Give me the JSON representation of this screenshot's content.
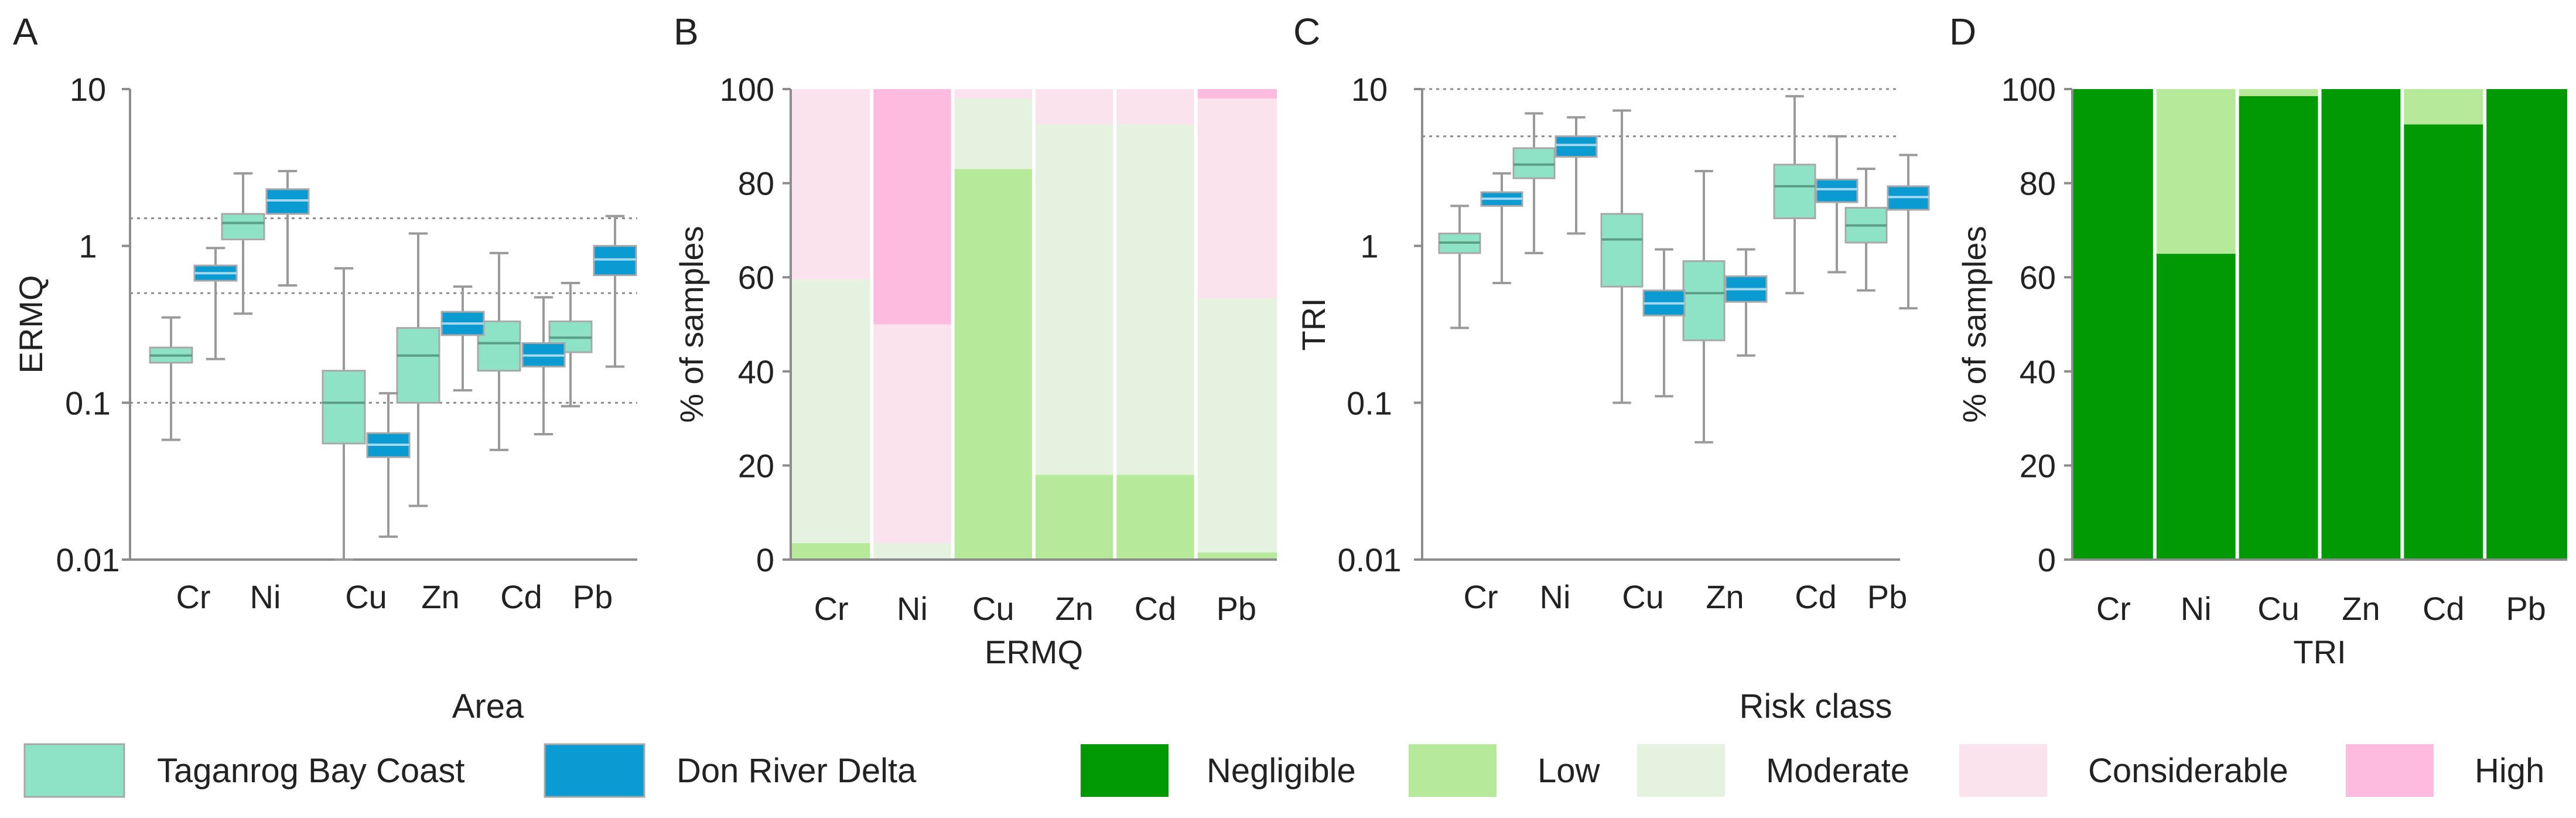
{
  "figure": {
    "panels": {
      "a": "A",
      "b": "B",
      "c": "C",
      "d": "D"
    },
    "legend_area": {
      "title": "Area",
      "items": [
        {
          "label": "Taganrog Bay Coast",
          "color": "#8ee3c6"
        },
        {
          "label": "Don River Delta",
          "color": "#0b9bd3"
        }
      ]
    },
    "legend_risk": {
      "title": "Risk class",
      "items": [
        {
          "label": "Negligible",
          "color": "#019a04"
        },
        {
          "label": "Low",
          "color": "#b7e99b"
        },
        {
          "label": "Moderate",
          "color": "#e5f2e0"
        },
        {
          "label": "Considerable",
          "color": "#fbe3ee"
        },
        {
          "label": "High",
          "color": "#fcbbdf"
        }
      ]
    }
  },
  "chart_data": [
    {
      "id": "A",
      "type": "box",
      "scale": "log",
      "ylabel": "ERMQ",
      "xlabel": "",
      "ylim": [
        0.01,
        10
      ],
      "yticks": [
        {
          "value": 0.01,
          "label": "0.01"
        },
        {
          "value": 0.1,
          "label": "0.1"
        },
        {
          "value": 1,
          "label": "1"
        },
        {
          "value": 10,
          "label": "10"
        }
      ],
      "ref_lines": [
        0.1,
        0.5,
        1.5
      ],
      "categories": [
        "Cr",
        "Ni",
        "Cu",
        "Zn",
        "Cd",
        "Pb"
      ],
      "series": [
        {
          "name": "Taganrog Bay Coast",
          "boxes": [
            {
              "min": 0.058,
              "q1": 0.18,
              "median": 0.2,
              "q3": 0.225,
              "max": 0.35
            },
            {
              "min": 0.37,
              "q1": 1.1,
              "median": 1.4,
              "q3": 1.6,
              "max": 2.9
            },
            {
              "min": 0.01,
              "q1": 0.055,
              "median": 0.1,
              "q3": 0.16,
              "max": 0.72
            },
            {
              "min": 0.022,
              "q1": 0.1,
              "median": 0.2,
              "q3": 0.3,
              "max": 1.2
            },
            {
              "min": 0.05,
              "q1": 0.16,
              "median": 0.24,
              "q3": 0.33,
              "max": 0.9
            },
            {
              "min": 0.095,
              "q1": 0.21,
              "median": 0.26,
              "q3": 0.33,
              "max": 0.58
            }
          ]
        },
        {
          "name": "Don River Delta",
          "boxes": [
            {
              "min": 0.19,
              "q1": 0.6,
              "median": 0.67,
              "q3": 0.75,
              "max": 0.97
            },
            {
              "min": 0.56,
              "q1": 1.6,
              "median": 1.95,
              "q3": 2.3,
              "max": 3.0
            },
            {
              "min": 0.014,
              "q1": 0.045,
              "median": 0.054,
              "q3": 0.064,
              "max": 0.115
            },
            {
              "min": 0.12,
              "q1": 0.27,
              "median": 0.32,
              "q3": 0.38,
              "max": 0.55
            },
            {
              "min": 0.063,
              "q1": 0.17,
              "median": 0.2,
              "q3": 0.24,
              "max": 0.47
            },
            {
              "min": 0.17,
              "q1": 0.65,
              "median": 0.82,
              "q3": 1.0,
              "max": 1.55
            }
          ]
        }
      ]
    },
    {
      "id": "B",
      "type": "stacked-bar",
      "ylabel": "% of samples",
      "xlabel": "ERMQ",
      "ylim": [
        0,
        100
      ],
      "yticks": [
        0,
        20,
        40,
        60,
        80,
        100
      ],
      "categories": [
        "Cr",
        "Ni",
        "Cu",
        "Zn",
        "Cd",
        "Pb"
      ],
      "series": [
        {
          "name": "Negligible",
          "color": "#019a04",
          "values": [
            0,
            0,
            0,
            0,
            0,
            0
          ]
        },
        {
          "name": "Low",
          "color": "#b7e99b",
          "values": [
            3.5,
            0,
            83,
            18,
            18,
            1.5
          ]
        },
        {
          "name": "Moderate",
          "color": "#e5f2e0",
          "values": [
            56,
            3.5,
            15,
            74.5,
            74.5,
            54
          ]
        },
        {
          "name": "Considerable",
          "color": "#fbe3ee",
          "values": [
            40.5,
            46.5,
            2,
            7.5,
            7.5,
            42.5
          ]
        },
        {
          "name": "High",
          "color": "#fcbbdf",
          "values": [
            0,
            50,
            0,
            0,
            0,
            2
          ]
        }
      ]
    },
    {
      "id": "C",
      "type": "box",
      "scale": "log",
      "ylabel": "TRI",
      "xlabel": "",
      "ylim": [
        0.01,
        10
      ],
      "yticks": [
        {
          "value": 0.01,
          "label": "0.01"
        },
        {
          "value": 0.1,
          "label": "0.1"
        },
        {
          "value": 1,
          "label": "1"
        },
        {
          "value": 10,
          "label": "10"
        }
      ],
      "ref_lines": [
        5,
        10
      ],
      "categories": [
        "Cr",
        "Ni",
        "Cu",
        "Zn",
        "Cd",
        "Pb"
      ],
      "series": [
        {
          "name": "Taganrog Bay Coast",
          "boxes": [
            {
              "min": 0.3,
              "q1": 0.9,
              "median": 1.05,
              "q3": 1.2,
              "max": 1.8
            },
            {
              "min": 0.9,
              "q1": 2.7,
              "median": 3.3,
              "q3": 4.2,
              "max": 7.0
            },
            {
              "min": 0.1,
              "q1": 0.55,
              "median": 1.1,
              "q3": 1.6,
              "max": 7.3
            },
            {
              "min": 0.056,
              "q1": 0.25,
              "median": 0.5,
              "q3": 0.8,
              "max": 3.0
            },
            {
              "min": 0.5,
              "q1": 1.5,
              "median": 2.4,
              "q3": 3.3,
              "max": 9.0
            },
            {
              "min": 0.52,
              "q1": 1.05,
              "median": 1.35,
              "q3": 1.75,
              "max": 3.1
            }
          ]
        },
        {
          "name": "Don River Delta",
          "boxes": [
            {
              "min": 0.58,
              "q1": 1.8,
              "median": 2.0,
              "q3": 2.2,
              "max": 2.9
            },
            {
              "min": 1.2,
              "q1": 3.7,
              "median": 4.4,
              "q3": 5.0,
              "max": 6.6
            },
            {
              "min": 0.11,
              "q1": 0.36,
              "median": 0.43,
              "q3": 0.52,
              "max": 0.95
            },
            {
              "min": 0.2,
              "q1": 0.44,
              "median": 0.53,
              "q3": 0.64,
              "max": 0.95
            },
            {
              "min": 0.68,
              "q1": 1.9,
              "median": 2.3,
              "q3": 2.65,
              "max": 5.0
            },
            {
              "min": 0.4,
              "q1": 1.7,
              "median": 2.05,
              "q3": 2.4,
              "max": 3.8
            }
          ]
        }
      ]
    },
    {
      "id": "D",
      "type": "stacked-bar",
      "ylabel": "% of samples",
      "xlabel": "TRI",
      "ylim": [
        0,
        100
      ],
      "yticks": [
        0,
        20,
        40,
        60,
        80,
        100
      ],
      "categories": [
        "Cr",
        "Ni",
        "Cu",
        "Zn",
        "Cd",
        "Pb"
      ],
      "series": [
        {
          "name": "Negligible",
          "color": "#019a04",
          "values": [
            100,
            65,
            98.5,
            100,
            92.5,
            100
          ]
        },
        {
          "name": "Low",
          "color": "#b7e99b",
          "values": [
            0,
            35,
            1.5,
            0,
            7.5,
            0
          ]
        },
        {
          "name": "Moderate",
          "color": "#e5f2e0",
          "values": [
            0,
            0,
            0,
            0,
            0,
            0
          ]
        },
        {
          "name": "Considerable",
          "color": "#fbe3ee",
          "values": [
            0,
            0,
            0,
            0,
            0,
            0
          ]
        },
        {
          "name": "High",
          "color": "#fcbbdf",
          "values": [
            0,
            0,
            0,
            0,
            0,
            0
          ]
        }
      ]
    }
  ]
}
